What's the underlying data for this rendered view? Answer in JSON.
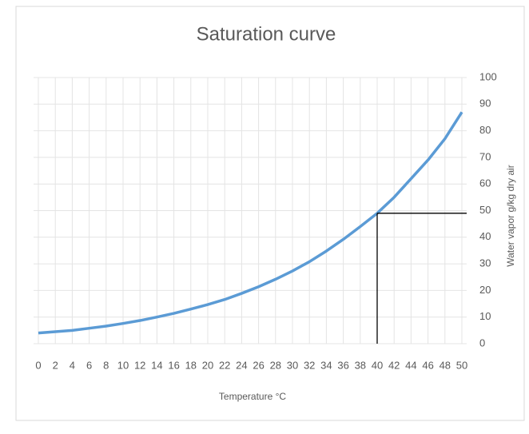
{
  "chart_data": {
    "type": "line",
    "title": "Saturation curve",
    "x_label": "Temperature  °C",
    "y_label": "Water vapor g/kg dry air",
    "x": [
      0,
      2,
      4,
      6,
      8,
      10,
      12,
      14,
      16,
      18,
      20,
      22,
      24,
      26,
      28,
      30,
      32,
      34,
      36,
      38,
      40,
      42,
      44,
      46,
      48,
      50
    ],
    "series": [
      {
        "color": "#5b9bd5",
        "values": [
          4,
          4.5,
          5,
          5.8,
          6.6,
          7.6,
          8.7,
          10,
          11.4,
          13,
          14.7,
          16.6,
          18.9,
          21.4,
          24.2,
          27.3,
          30.8,
          34.8,
          39.2,
          44,
          49,
          55,
          62,
          69,
          77,
          87
        ]
      }
    ],
    "reference_point": {
      "x": 40,
      "y": 49
    },
    "xlim": [
      0,
      50
    ],
    "xticks": [
      0,
      2,
      4,
      6,
      8,
      10,
      12,
      14,
      16,
      18,
      20,
      22,
      24,
      26,
      28,
      30,
      32,
      34,
      36,
      38,
      40,
      42,
      44,
      46,
      48,
      50
    ],
    "ylim": [
      0,
      100
    ],
    "yticks": [
      0,
      10,
      20,
      30,
      40,
      50,
      60,
      70,
      80,
      90,
      100
    ],
    "y_axis_side": "right",
    "grid": true
  }
}
